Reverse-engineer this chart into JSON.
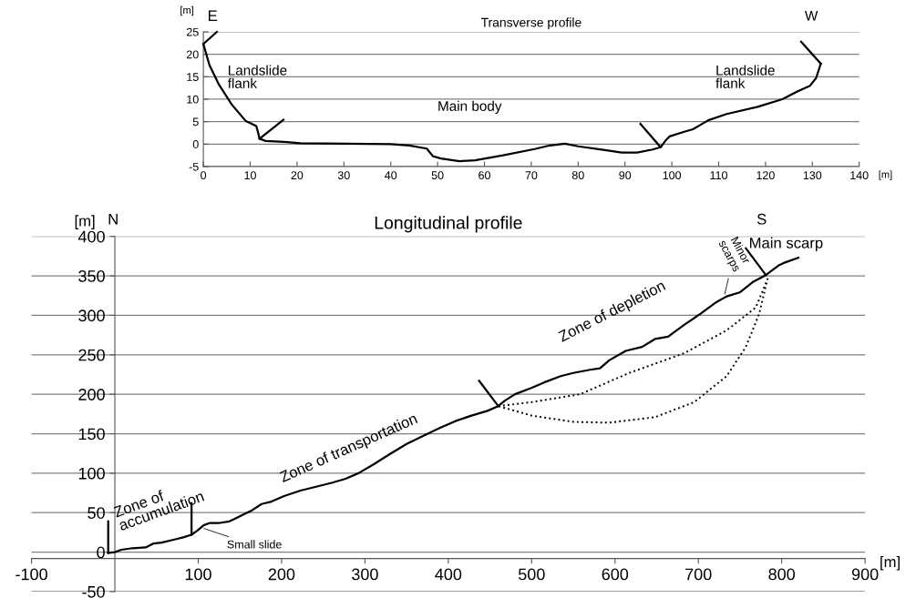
{
  "chart_data": [
    {
      "type": "line",
      "title": "Transverse profile",
      "xlabel": "[m]",
      "ylabel": "[m]",
      "xlim": [
        0,
        140
      ],
      "xticks": [
        0,
        10,
        20,
        30,
        40,
        50,
        60,
        70,
        80,
        90,
        100,
        110,
        120,
        130,
        140
      ],
      "ylim": [
        -5,
        25
      ],
      "yticks": [
        -5,
        0,
        5,
        10,
        15,
        20,
        25
      ],
      "grid": "y",
      "legend": false,
      "marker": "none",
      "line_style": "solid",
      "series": [
        {
          "color": "#000000",
          "x": [
            0,
            1.3,
            3.3,
            6,
            9,
            11.3,
            11.7,
            12,
            13.3,
            17.3,
            20.7,
            30.7,
            40,
            44,
            47.7,
            49,
            50.7,
            54.7,
            58,
            64,
            70.7,
            74,
            77.2,
            80,
            85.4,
            89.3,
            92.6,
            95.9,
            97.6,
            98.6,
            99.5,
            102.5,
            104.5,
            107.8,
            111.7,
            118.3,
            123.6,
            126.8,
            129.5,
            130.8,
            131.8
          ],
          "values": [
            22.3,
            17.6,
            13.3,
            8.9,
            5.2,
            4.0,
            2.5,
            1.2,
            0.7,
            0.5,
            0.2,
            0.1,
            0,
            -0.3,
            -1,
            -2.7,
            -3.2,
            -3.8,
            -3.6,
            -2.5,
            -1.1,
            -0.3,
            0.1,
            -0.5,
            -1.3,
            -1.9,
            -1.9,
            -1.2,
            -0.7,
            0.7,
            1.7,
            2.7,
            3.3,
            5.3,
            6.7,
            8.3,
            10,
            11.7,
            13,
            14.7,
            17.9
          ]
        },
        {
          "color": "#000000",
          "x": [
            0,
            2.9
          ],
          "values": [
            22.3,
            25
          ]
        },
        {
          "color": "#000000",
          "x": [
            12,
            17.1
          ],
          "values": [
            1.2,
            5.4
          ]
        },
        {
          "color": "#000000",
          "x": [
            97.6,
            93.3
          ],
          "values": [
            -0.7,
            4.5
          ]
        },
        {
          "color": "#000000",
          "x": [
            131.8,
            127.6
          ],
          "values": [
            17.9,
            22.8
          ]
        }
      ],
      "annotations": [
        "E",
        "W",
        "Landslide\nflank",
        "Main body",
        "Landslide\nflank"
      ]
    },
    {
      "type": "line",
      "title": "Longitudinal profile",
      "xlabel": "[m]",
      "ylabel": "[m]",
      "xlim": [
        -100,
        900
      ],
      "xticks": [
        -100,
        100,
        200,
        300,
        400,
        500,
        600,
        700,
        800,
        900
      ],
      "ylim": [
        -50,
        400
      ],
      "yticks": [
        -50,
        0,
        50,
        100,
        150,
        200,
        250,
        300,
        350,
        400
      ],
      "grid": "y",
      "legend": false,
      "marker": "none",
      "line_style": "solid",
      "series": [
        {
          "color": "#000000",
          "x": [
            -8,
            0,
            7.7,
            21,
            37,
            46.5,
            56,
            71.6,
            83,
            91.8,
            98.7,
            106.5,
            114,
            125.8,
            137.4,
            157,
            164.5,
            176,
            187.8,
            203,
            222.6,
            245.8,
            261,
            276.8,
            292.3,
            311.6,
            331,
            350,
            369.7,
            389,
            408.4,
            427.8,
            447,
            459.8,
            468,
            480,
            499.6,
            515,
            534.8,
            550,
            570,
            582,
            593,
            612.9,
            632.4,
            648,
            663.7,
            683,
            702.7,
            722,
            734,
            749.6,
            765,
            781,
            796,
            804,
            820
          ],
          "values": [
            -1,
            0,
            3,
            5,
            6,
            11,
            12,
            16,
            19,
            22,
            27,
            34,
            37,
            37,
            39,
            49,
            53,
            61,
            64,
            71,
            78,
            84,
            88,
            93,
            100,
            112,
            125,
            137,
            147,
            157,
            166,
            173,
            179,
            185,
            192,
            200,
            208,
            215,
            223,
            227,
            231,
            233,
            243,
            255,
            260,
            270,
            273,
            288,
            302,
            317,
            324,
            329,
            342,
            351,
            363,
            367,
            373
          ]
        },
        {
          "color": "#000000",
          "x": [
            -8,
            -8
          ],
          "values": [
            -1,
            39
          ]
        },
        {
          "color": "#000000",
          "x": [
            92,
            92
          ],
          "values": [
            22,
            62
          ]
        },
        {
          "color": "#000000",
          "x": [
            460,
            437
          ],
          "values": [
            185,
            217
          ]
        },
        {
          "color": "#000000",
          "x": [
            781,
            757
          ],
          "values": [
            351,
            385
          ]
        }
      ],
      "annotations": [
        "N",
        "S",
        "Main scarp",
        "Zone of depletion",
        "Zone of transportation",
        "Zone of\naccumulation",
        {
          "text": "Small slide",
          "x": 104,
          "y": 31
        },
        {
          "text": "Minor\nscarps",
          "x": 731,
          "y": 324
        }
      ]
    }
  ]
}
